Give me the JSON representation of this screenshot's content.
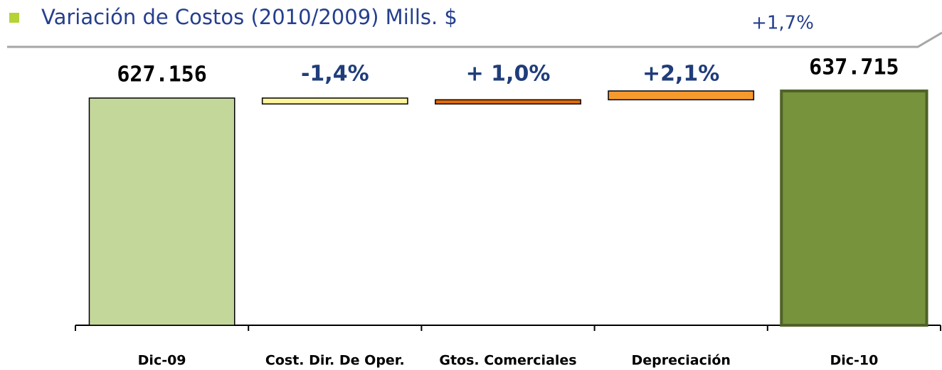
{
  "chart_data": {
    "type": "waterfall",
    "title": "Variación de Costos (2010/2009) Mills. $",
    "annotation": "+1,7%",
    "categories": [
      "Dic-09",
      "Cost. Dir. De Oper.",
      "Gtos. Comerciales",
      "Depreciación",
      "Dic-10"
    ],
    "values": [
      627156,
      -8780,
      6240,
      13099,
      637715
    ],
    "value_labels": [
      "627.156",
      null,
      null,
      null,
      "637.715"
    ],
    "change_labels": [
      null,
      "-1,4%",
      "+ 1,0%",
      "+2,1%",
      null
    ],
    "colors": [
      "#c4d79b",
      "#fdf59c",
      "#e46c0a",
      "#f79a2e",
      "#77933c"
    ],
    "ylim": [
      289000,
      660000
    ]
  }
}
